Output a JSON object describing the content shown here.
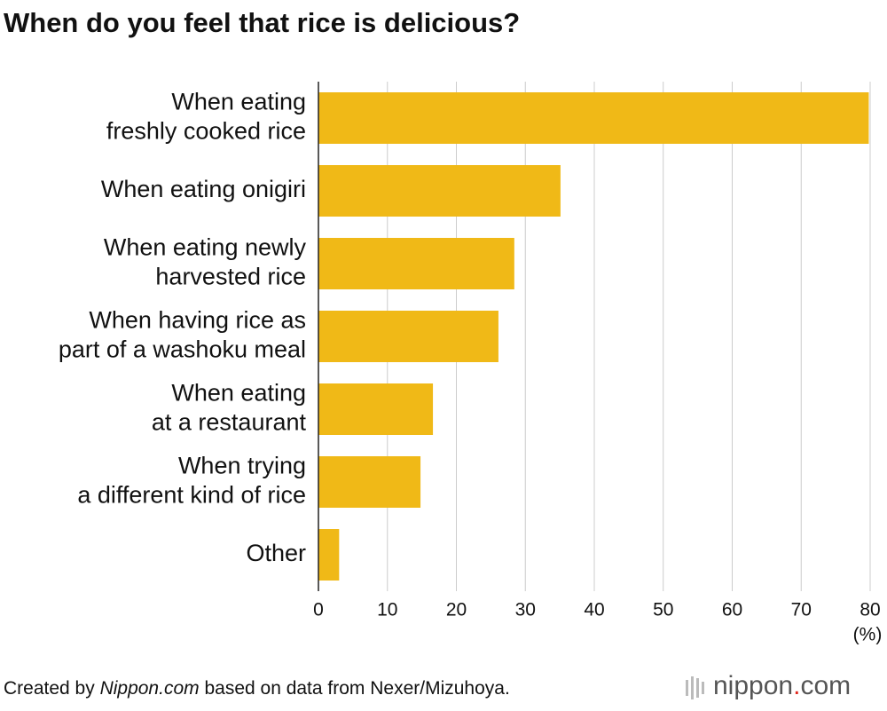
{
  "chart_data": {
    "type": "bar",
    "orientation": "horizontal",
    "title": "When do you feel that rice is delicious?",
    "categories": [
      "When eating\nfreshly cooked rice",
      "When eating onigiri",
      "When eating newly\nharvested rice",
      "When having rice as\npart of a washoku meal",
      "When eating\nat a restaurant",
      "When trying\na different kind of rice",
      "Other"
    ],
    "values": [
      79.8,
      35.1,
      28.4,
      26.1,
      16.6,
      14.8,
      3.0
    ],
    "color": "#f0b917",
    "xlim": [
      0,
      80
    ],
    "xticks": [
      0,
      10,
      20,
      30,
      40,
      50,
      60,
      70,
      80
    ],
    "x_unit": "(%)",
    "grid": true,
    "source": {
      "prefix": "Created by ",
      "italic": "Nippon.com",
      "suffix": " based on data from Nexer/Mizuhoya."
    },
    "logo": [
      "nippon",
      ".",
      "com"
    ]
  }
}
